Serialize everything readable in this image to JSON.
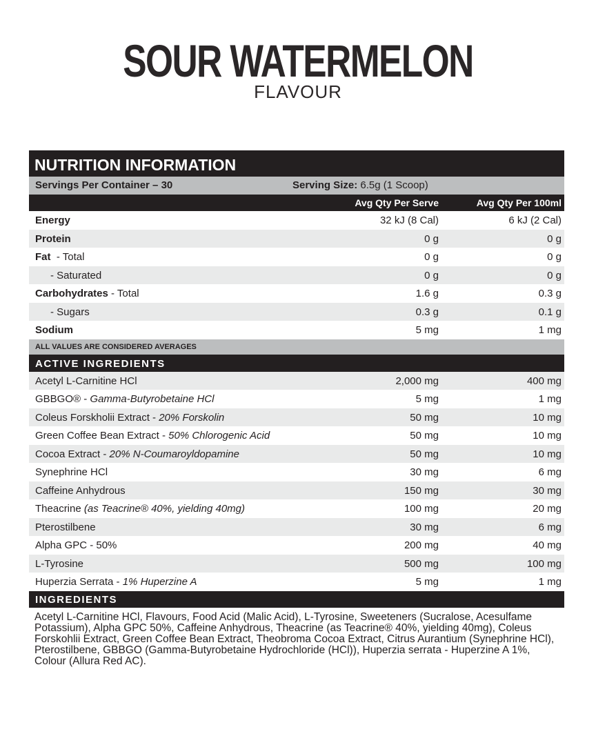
{
  "product": {
    "title": "SOUR WATERMELON",
    "subtitle": "FLAVOUR"
  },
  "nutrition": {
    "heading": "NUTRITION INFORMATION",
    "servings": "Servings Per Container – 30",
    "serving_size_label": "Serving Size:",
    "serving_size_value": " 6.5g (1 Scoop)",
    "col1": "Avg Qty Per Serve",
    "col2": "Avg Qty Per 100ml",
    "rows": [
      {
        "name": "Energy",
        "suffix": "",
        "v1": "32 kJ (8 Cal)",
        "v2": "6 kJ (2 Cal)"
      },
      {
        "name": "Protein",
        "suffix": "",
        "v1": "0 g",
        "v2": "0 g"
      },
      {
        "name": "Fat",
        "suffix": "  - Total",
        "v1": "0 g",
        "v2": "0 g"
      },
      {
        "name": "",
        "suffix": "- Saturated",
        "v1": "0 g",
        "v2": "0 g"
      },
      {
        "name": "Carbohydrates",
        "suffix": " - Total",
        "v1": "1.6 g",
        "v2": "0.3 g"
      },
      {
        "name": "",
        "suffix": "- Sugars",
        "v1": "0.3 g",
        "v2": "0.1 g"
      },
      {
        "name": "Sodium",
        "suffix": "",
        "v1": "5 mg",
        "v2": "1 mg"
      }
    ],
    "averages_note": "ALL VALUES ARE CONSIDERED AVERAGES"
  },
  "active": {
    "heading": "ACTIVE INGREDIENTS",
    "rows": [
      {
        "name": "Acetyl L-Carnitine HCl",
        "detail": "",
        "v1": "2,000 mg",
        "v2": "400 mg"
      },
      {
        "name": "GBBGO® - ",
        "detail": "Gamma-Butyrobetaine HCl",
        "v1": "5 mg",
        "v2": "1 mg"
      },
      {
        "name": "Coleus Forskholii Extract - ",
        "detail": "20% Forskolin",
        "v1": "50 mg",
        "v2": "10 mg"
      },
      {
        "name": "Green Coffee Bean Extract - ",
        "detail": "50% Chlorogenic Acid",
        "v1": "50 mg",
        "v2": "10 mg"
      },
      {
        "name": "Cocoa Extract - ",
        "detail": "20% N-Coumaroyldopamine",
        "v1": "50 mg",
        "v2": "10 mg"
      },
      {
        "name": "Synephrine HCl",
        "detail": "",
        "v1": "30 mg",
        "v2": "6 mg"
      },
      {
        "name": "Caffeine Anhydrous",
        "detail": "",
        "v1": "150 mg",
        "v2": "30 mg"
      },
      {
        "name": "Theacrine ",
        "detail": "(as Teacrine® 40%, yielding 40mg)",
        "v1": "100 mg",
        "v2": "20 mg"
      },
      {
        "name": "Pterostilbene",
        "detail": "",
        "v1": "30 mg",
        "v2": "6 mg"
      },
      {
        "name": "Alpha GPC - 50%",
        "detail": "",
        "v1": "200 mg",
        "v2": "40 mg"
      },
      {
        "name": "L-Tyrosine",
        "detail": "",
        "v1": "500 mg",
        "v2": "100 mg"
      },
      {
        "name": "Huperzia Serrata - ",
        "detail": "1% Huperzine A",
        "v1": "5 mg",
        "v2": "1 mg"
      }
    ]
  },
  "ingredients": {
    "heading": "INGREDIENTS",
    "text": "Acetyl L-Carnitine HCl, Flavours, Food Acid (Malic Acid), L-Tyrosine, Sweeteners (Sucralose, Acesulfame Potassium), Alpha GPC 50%, Caffeine Anhydrous, Theacrine (as Teacrine® 40%, yielding 40mg), Coleus Forskohlii Extract, Green Coffee Bean Extract, Theobroma Cocoa Extract, Citrus Aurantium (Synephrine HCl), Pterostilbene, GBBGO (Gamma-Butyrobetaine Hydrochloride (HCl)), Huperzia serrata - Huperzine A 1%, Colour (Allura Red AC)."
  }
}
